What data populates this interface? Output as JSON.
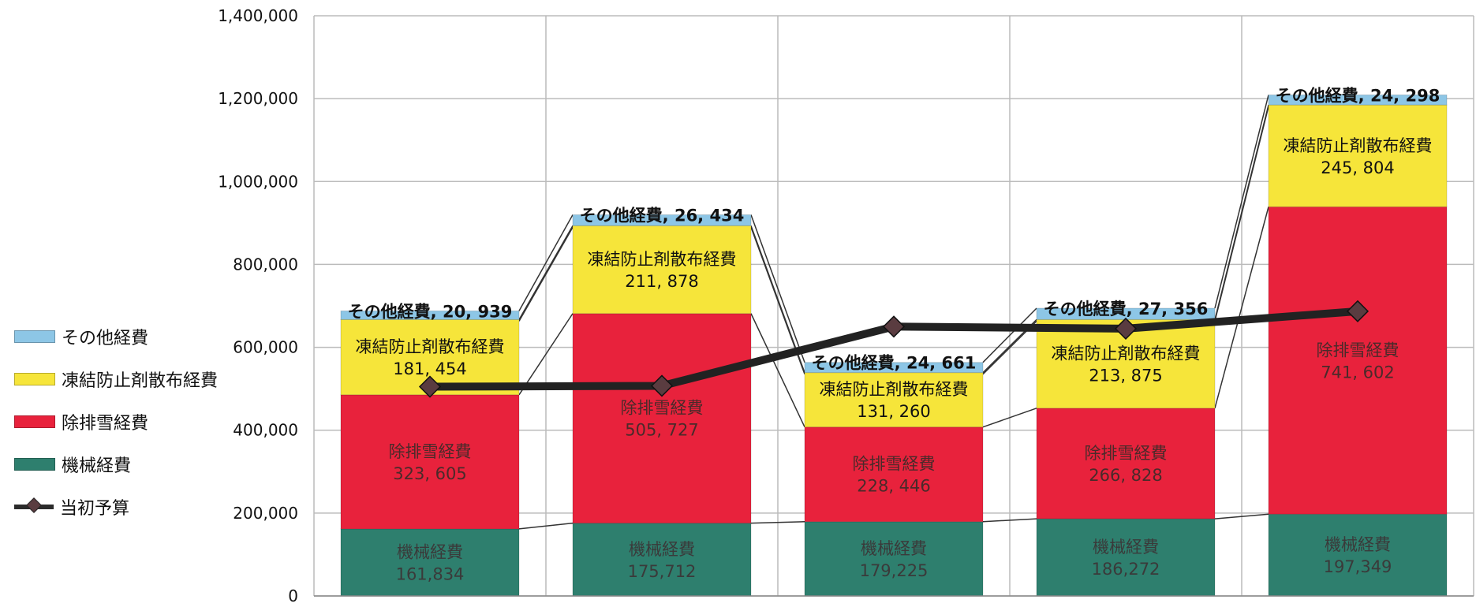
{
  "chart_data": {
    "type": "bar",
    "stacked": true,
    "categories": [
      "",
      "",
      "",
      "",
      ""
    ],
    "ylim": [
      0,
      1400000
    ],
    "yticks": [
      "0",
      "200,000",
      "400,000",
      "600,000",
      "800,000",
      "1,000,000",
      "1,200,000",
      "1,400,000"
    ],
    "ytick_values": [
      0,
      200000,
      400000,
      600000,
      800000,
      1000000,
      1200000,
      1400000
    ],
    "grid": true,
    "legend_position": "left",
    "series": [
      {
        "name": "機械経費",
        "color": "#2e7f6e",
        "values": [
          161834,
          175712,
          179225,
          186272,
          197349
        ],
        "labels": [
          [
            "機械経費",
            "161,834"
          ],
          [
            "機械経費",
            "175,712"
          ],
          [
            "機械経費",
            "179,225"
          ],
          [
            "機械経費",
            "186,272"
          ],
          [
            "機械経費",
            "197,349"
          ]
        ]
      },
      {
        "name": "除排雪経費",
        "color": "#e8223c",
        "values": [
          323605,
          505727,
          228446,
          266828,
          741602
        ],
        "labels": [
          [
            "除排雪経費",
            "323, 605"
          ],
          [
            "除排雪経費",
            "505, 727"
          ],
          [
            "除排雪経費",
            "228, 446"
          ],
          [
            "除排雪経費",
            "266, 828"
          ],
          [
            "除排雪経費",
            "741, 602"
          ]
        ]
      },
      {
        "name": "凍結防止剤散布経費",
        "color": "#f6e53a",
        "values": [
          181454,
          211878,
          131260,
          213875,
          245804
        ],
        "labels": [
          [
            "凍結防止剤散布経費",
            "181, 454"
          ],
          [
            "凍結防止剤散布経費",
            "211, 878"
          ],
          [
            "凍結防止剤散布経費",
            "131, 260"
          ],
          [
            "凍結防止剤散布経費",
            "213, 875"
          ],
          [
            "凍結防止剤散布経費",
            "245, 804"
          ]
        ]
      },
      {
        "name": "その他経費",
        "color": "#8dc6e6",
        "values": [
          20939,
          26434,
          24661,
          27356,
          24298
        ],
        "labels": [
          "その他経費, 20, 939",
          "その他経費, 26, 434",
          "その他経費, 24, 661",
          "その他経費, 27, 356",
          "その他経費, 24, 298"
        ]
      }
    ],
    "line_series": {
      "name": "当初予算",
      "color": "#222222",
      "marker_color": "#5a3c40",
      "values": [
        505000,
        507000,
        650000,
        645000,
        687000
      ]
    }
  }
}
